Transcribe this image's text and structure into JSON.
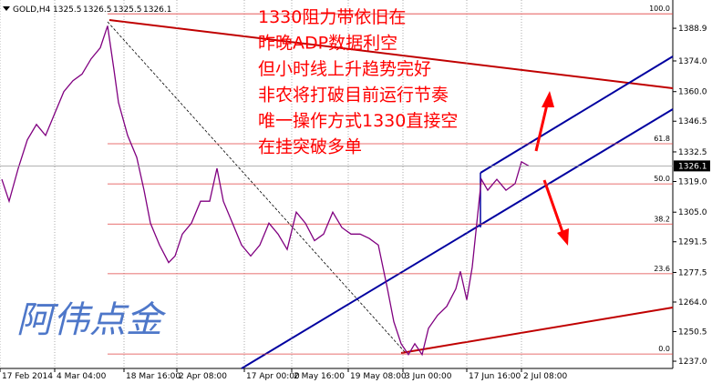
{
  "chart_data": {
    "type": "line",
    "title": "GOLD,H4",
    "quote": {
      "open": 1325.5,
      "high": 1326.5,
      "low": 1325.5,
      "close": 1326.1
    },
    "annotations": [
      "1330阻力带依旧在",
      "昨晚ADP数据利空",
      "但小时线上升趋势完好",
      "非农将打破目前运行节奏",
      "唯一操作方式1330直接空",
      "在挂突破多单"
    ],
    "watermark": "阿伟点金",
    "color": "#800080",
    "x": [
      1,
      5,
      10,
      15,
      20,
      25,
      30,
      35,
      40,
      45,
      50,
      55,
      59,
      62.5,
      65,
      70,
      75,
      79,
      82.5,
      87.5,
      92.5,
      96,
      100,
      105,
      110,
      115,
      119,
      122.5,
      127.5,
      132.5,
      137.5,
      142.5,
      147.5,
      152.5,
      157.5,
      162.5,
      167.5,
      172.5,
      177.5,
      182.5,
      187.5,
      192.5,
      197.5,
      202.5,
      207.5,
      212.5,
      216,
      220,
      224,
      227.5,
      231.5,
      235,
      240,
      245,
      250,
      252.5,
      256,
      259,
      261.5,
      264,
      267.5,
      272.5,
      277.5,
      282.5,
      286,
      290
    ],
    "values": [
      1320,
      1310,
      1325,
      1338,
      1345,
      1340,
      1350,
      1360,
      1365,
      1368,
      1375,
      1380,
      1390,
      1370,
      1355,
      1340,
      1330,
      1315,
      1300,
      1290,
      1282,
      1285,
      1295,
      1300,
      1310,
      1310,
      1325,
      1310,
      1300,
      1290,
      1285,
      1290,
      1300,
      1295,
      1288,
      1305,
      1300,
      1292,
      1295,
      1305,
      1298,
      1295,
      1295,
      1293,
      1290,
      1270,
      1255,
      1245,
      1240,
      1245,
      1240,
      1252,
      1258,
      1262,
      1270,
      1278,
      1265,
      1280,
      1300,
      1320,
      1315,
      1320,
      1315,
      1318,
      1328,
      1326.1
    ],
    "xlim": [
      0,
      369
    ],
    "xticks": [
      {
        "value": 0,
        "label": "17 Feb 2014"
      },
      {
        "value": 30,
        "label": "4 Mar 04:00"
      },
      {
        "value": 68,
        "label": "18 Mar 16:00"
      },
      {
        "value": 97,
        "label": "2 Apr 08:00"
      },
      {
        "value": 134,
        "label": "17 Apr 00:00"
      },
      {
        "value": 160,
        "label": "2 May 16:00"
      },
      {
        "value": 191,
        "label": "19 May 08:00"
      },
      {
        "value": 221,
        "label": "3 Jun 00:00"
      },
      {
        "value": 256,
        "label": "17 Jun 16:00"
      },
      {
        "value": 286,
        "label": "2 Jul 08:00"
      }
    ],
    "ylim": [
      1233.7,
      1401.8
    ],
    "yticks": [
      1388.9,
      {
        "value": 1374,
        "label": "1374.0"
      },
      {
        "value": 1360,
        "label": "1360.0"
      },
      1346.5,
      1332.5,
      {
        "value": 1319,
        "label": "1319.0"
      },
      {
        "value": 1305,
        "label": "1305.0"
      },
      1291.5,
      1277.5,
      {
        "value": 1264,
        "label": "1264.0"
      },
      1250.5,
      {
        "value": 1237,
        "label": "1237.0"
      }
    ],
    "current_price": 1326.1,
    "fib": {
      "high": 1395.5,
      "low": 1240.3,
      "levels": [
        {
          "value": 100,
          "label": "100.0"
        },
        61.8,
        {
          "value": 50,
          "label": "50.0"
        },
        38.2,
        23.6,
        {
          "value": 0,
          "label": "0.0"
        }
      ]
    }
  }
}
